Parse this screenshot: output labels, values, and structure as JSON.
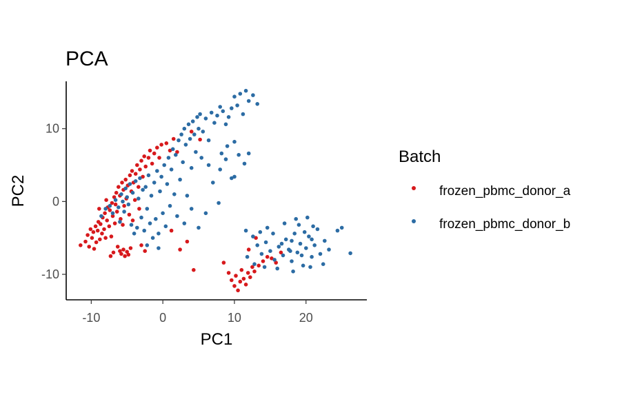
{
  "chart_data": {
    "type": "scatter",
    "title": "PCA",
    "xlabel": "PC1",
    "ylabel": "PC2",
    "xlim": [
      -13.5,
      28.5
    ],
    "ylim": [
      -13.5,
      16.5
    ],
    "xticks": [
      -10,
      0,
      10,
      20
    ],
    "yticks": [
      -10,
      0,
      10
    ],
    "grid": false,
    "legend": {
      "title": "Batch",
      "position": "right"
    },
    "series": [
      {
        "name": "frozen_pbmc_donor_a",
        "color": "#d7191c",
        "points": [
          [
            -11.5,
            -6.0
          ],
          [
            -10.8,
            -5.5
          ],
          [
            -10.5,
            -4.6
          ],
          [
            -10.3,
            -6.2
          ],
          [
            -10.1,
            -3.8
          ],
          [
            -9.9,
            -5.0
          ],
          [
            -9.7,
            -4.2
          ],
          [
            -9.6,
            -6.5
          ],
          [
            -9.4,
            -3.4
          ],
          [
            -9.3,
            -5.6
          ],
          [
            -9.1,
            -4.0
          ],
          [
            -9.0,
            -2.8
          ],
          [
            -8.8,
            -5.2
          ],
          [
            -8.7,
            -3.1
          ],
          [
            -8.5,
            -4.4
          ],
          [
            -8.4,
            -2.2
          ],
          [
            -8.2,
            -3.8
          ],
          [
            -8.1,
            -1.6
          ],
          [
            -8.0,
            -5.0
          ],
          [
            -7.8,
            -2.6
          ],
          [
            -7.7,
            -0.8
          ],
          [
            -7.5,
            -3.4
          ],
          [
            -7.4,
            -1.2
          ],
          [
            -7.2,
            -4.8
          ],
          [
            -7.1,
            -0.2
          ],
          [
            -7.0,
            -2.0
          ],
          [
            -6.8,
            0.6
          ],
          [
            -6.7,
            -3.0
          ],
          [
            -6.5,
            1.2
          ],
          [
            -6.4,
            -1.4
          ],
          [
            -6.3,
            -6.2
          ],
          [
            -6.0,
            -6.8
          ],
          [
            -5.8,
            -7.2
          ],
          [
            -5.5,
            -6.6
          ],
          [
            -5.3,
            -7.5
          ],
          [
            -5.0,
            -6.9
          ],
          [
            -4.8,
            -7.3
          ],
          [
            -6.9,
            -7.0
          ],
          [
            -7.3,
            -7.5
          ],
          [
            -4.5,
            -6.4
          ],
          [
            -6.2,
            2.0
          ],
          [
            -6.0,
            0.8
          ],
          [
            -5.9,
            -2.4
          ],
          [
            -5.7,
            2.6
          ],
          [
            -5.5,
            1.6
          ],
          [
            -5.4,
            -0.6
          ],
          [
            -5.2,
            3.0
          ],
          [
            -5.1,
            0.4
          ],
          [
            -4.9,
            2.2
          ],
          [
            -4.7,
            -1.8
          ],
          [
            -4.6,
            3.6
          ],
          [
            -4.4,
            1.4
          ],
          [
            -4.3,
            4.2
          ],
          [
            -4.1,
            2.6
          ],
          [
            -3.9,
            0.2
          ],
          [
            -3.8,
            3.8
          ],
          [
            -3.6,
            5.0
          ],
          [
            -3.4,
            2.0
          ],
          [
            -3.2,
            4.4
          ],
          [
            -3.0,
            5.6
          ],
          [
            -2.8,
            3.4
          ],
          [
            -2.6,
            6.2
          ],
          [
            -2.4,
            4.8
          ],
          [
            -2.0,
            6.0
          ],
          [
            -1.8,
            7.0
          ],
          [
            -1.5,
            5.2
          ],
          [
            -1.2,
            6.6
          ],
          [
            -0.8,
            7.4
          ],
          [
            -0.5,
            6.0
          ],
          [
            -0.2,
            7.8
          ],
          [
            0.5,
            8.0
          ],
          [
            1.0,
            7.0
          ],
          [
            1.5,
            8.6
          ],
          [
            2.0,
            6.8
          ],
          [
            4.0,
            9.6
          ],
          [
            5.2,
            8.5
          ],
          [
            -3.0,
            -6.0
          ],
          [
            -2.5,
            -6.8
          ],
          [
            1.2,
            -4.0
          ],
          [
            2.4,
            -6.6
          ],
          [
            3.4,
            -5.5
          ],
          [
            4.3,
            -9.4
          ],
          [
            8.5,
            -8.4
          ],
          [
            9.2,
            -9.8
          ],
          [
            9.6,
            -10.8
          ],
          [
            10.0,
            -11.6
          ],
          [
            10.2,
            -10.2
          ],
          [
            10.5,
            -12.2
          ],
          [
            10.8,
            -11.0
          ],
          [
            11.0,
            -9.4
          ],
          [
            11.3,
            -10.6
          ],
          [
            11.6,
            -11.4
          ],
          [
            11.9,
            -9.8
          ],
          [
            12.2,
            -10.4
          ],
          [
            12.5,
            -9.0
          ],
          [
            12.8,
            -9.6
          ],
          [
            13.4,
            -8.8
          ],
          [
            14.0,
            -8.2
          ],
          [
            14.6,
            -7.6
          ],
          [
            15.2,
            -7.8
          ],
          [
            15.8,
            -8.4
          ],
          [
            16.5,
            -7.0
          ],
          [
            13.0,
            -5.0
          ],
          [
            12.0,
            -6.6
          ],
          [
            -8.9,
            -1.0
          ],
          [
            -7.9,
            0.2
          ],
          [
            -6.6,
            -0.4
          ],
          [
            -5.6,
            -3.2
          ],
          [
            -4.2,
            -2.6
          ],
          [
            -3.3,
            -1.0
          ]
        ]
      },
      {
        "name": "frozen_pbmc_donor_b",
        "color": "#2c6ca4",
        "points": [
          [
            -8.6,
            -2.0
          ],
          [
            -8.0,
            -1.0
          ],
          [
            -7.4,
            -0.6
          ],
          [
            -7.0,
            -1.6
          ],
          [
            -6.6,
            0.2
          ],
          [
            -6.2,
            -0.8
          ],
          [
            -6.0,
            -2.8
          ],
          [
            -5.8,
            1.0
          ],
          [
            -5.6,
            0.0
          ],
          [
            -5.4,
            -1.4
          ],
          [
            -5.2,
            1.8
          ],
          [
            -5.0,
            0.6
          ],
          [
            -4.8,
            -0.4
          ],
          [
            -4.6,
            2.4
          ],
          [
            -4.4,
            -3.2
          ],
          [
            -4.2,
            1.2
          ],
          [
            -4.0,
            -4.4
          ],
          [
            -3.8,
            2.8
          ],
          [
            -3.6,
            -3.6
          ],
          [
            -3.4,
            0.4
          ],
          [
            -3.2,
            3.2
          ],
          [
            -3.0,
            -2.2
          ],
          [
            -2.8,
            1.6
          ],
          [
            -2.6,
            -4.0
          ],
          [
            -2.4,
            2.0
          ],
          [
            -2.2,
            -1.0
          ],
          [
            -2.0,
            3.6
          ],
          [
            -1.8,
            -3.0
          ],
          [
            -1.6,
            0.8
          ],
          [
            -1.4,
            -5.0
          ],
          [
            -1.2,
            2.6
          ],
          [
            -1.0,
            -2.4
          ],
          [
            -0.8,
            4.2
          ],
          [
            -0.6,
            -4.4
          ],
          [
            -0.4,
            1.4
          ],
          [
            -0.2,
            3.4
          ],
          [
            0.0,
            -1.6
          ],
          [
            0.2,
            5.0
          ],
          [
            0.4,
            -3.4
          ],
          [
            0.6,
            2.4
          ],
          [
            0.8,
            6.0
          ],
          [
            1.0,
            -0.6
          ],
          [
            1.2,
            4.4
          ],
          [
            1.4,
            7.2
          ],
          [
            1.6,
            1.0
          ],
          [
            1.8,
            6.4
          ],
          [
            2.0,
            -2.0
          ],
          [
            2.2,
            8.4
          ],
          [
            2.4,
            3.0
          ],
          [
            2.6,
            9.2
          ],
          [
            2.8,
            5.4
          ],
          [
            3.0,
            10.0
          ],
          [
            3.2,
            7.8
          ],
          [
            3.4,
            0.8
          ],
          [
            3.6,
            10.6
          ],
          [
            3.8,
            8.6
          ],
          [
            4.0,
            4.6
          ],
          [
            4.2,
            11.0
          ],
          [
            4.4,
            9.2
          ],
          [
            4.6,
            6.8
          ],
          [
            4.8,
            11.6
          ],
          [
            5.0,
            10.0
          ],
          [
            5.2,
            12.0
          ],
          [
            5.6,
            9.6
          ],
          [
            6.0,
            11.4
          ],
          [
            6.4,
            8.4
          ],
          [
            6.8,
            12.2
          ],
          [
            7.2,
            10.8
          ],
          [
            7.6,
            11.8
          ],
          [
            8.0,
            13.0
          ],
          [
            8.4,
            12.4
          ],
          [
            8.8,
            10.6
          ],
          [
            9.2,
            11.6
          ],
          [
            9.6,
            12.8
          ],
          [
            10.0,
            14.4
          ],
          [
            10.4,
            13.2
          ],
          [
            10.8,
            14.8
          ],
          [
            11.2,
            12.0
          ],
          [
            11.6,
            15.2
          ],
          [
            12.0,
            13.8
          ],
          [
            12.6,
            14.6
          ],
          [
            13.2,
            13.4
          ],
          [
            5.4,
            6.0
          ],
          [
            6.4,
            5.0
          ],
          [
            7.0,
            2.6
          ],
          [
            8.0,
            4.4
          ],
          [
            8.8,
            5.8
          ],
          [
            9.6,
            3.2
          ],
          [
            10.6,
            6.4
          ],
          [
            11.4,
            5.2
          ],
          [
            12.0,
            6.6
          ],
          [
            10.0,
            8.2
          ],
          [
            9.0,
            7.6
          ],
          [
            8.2,
            6.6
          ],
          [
            5.0,
            -3.6
          ],
          [
            4.0,
            -1.0
          ],
          [
            3.0,
            -3.0
          ],
          [
            6.0,
            -1.6
          ],
          [
            7.8,
            -0.2
          ],
          [
            10.0,
            3.4
          ],
          [
            11.6,
            -4.0
          ],
          [
            12.6,
            -4.8
          ],
          [
            13.2,
            -6.0
          ],
          [
            13.8,
            -7.2
          ],
          [
            14.4,
            -5.6
          ],
          [
            15.0,
            -6.8
          ],
          [
            15.6,
            -8.0
          ],
          [
            16.2,
            -6.2
          ],
          [
            16.8,
            -7.4
          ],
          [
            17.2,
            -5.2
          ],
          [
            17.6,
            -6.6
          ],
          [
            18.0,
            -8.2
          ],
          [
            18.4,
            -4.4
          ],
          [
            18.8,
            -7.0
          ],
          [
            19.2,
            -5.8
          ],
          [
            19.6,
            -8.8
          ],
          [
            20.0,
            -6.4
          ],
          [
            20.4,
            -4.8
          ],
          [
            20.8,
            -7.6
          ],
          [
            21.2,
            -6.0
          ],
          [
            21.6,
            -3.8
          ],
          [
            22.0,
            -7.2
          ],
          [
            22.6,
            -5.4
          ],
          [
            23.2,
            -6.6
          ],
          [
            24.4,
            -4.0
          ],
          [
            25.0,
            -3.6
          ],
          [
            26.2,
            -7.1
          ],
          [
            17.0,
            -3.0
          ],
          [
            18.6,
            -2.4
          ],
          [
            19.0,
            -3.2
          ],
          [
            20.2,
            -2.2
          ],
          [
            21.0,
            -3.4
          ],
          [
            15.4,
            -4.4
          ],
          [
            14.6,
            -3.6
          ],
          [
            16.0,
            -9.2
          ],
          [
            18.2,
            -9.6
          ],
          [
            20.6,
            -9.0
          ],
          [
            14.2,
            -9.0
          ],
          [
            12.8,
            -8.6
          ],
          [
            11.8,
            -7.6
          ],
          [
            17.8,
            -6.8
          ],
          [
            19.4,
            -7.4
          ],
          [
            16.6,
            -5.8
          ],
          [
            20.8,
            -5.2
          ],
          [
            22.4,
            -8.6
          ],
          [
            13.6,
            -4.2
          ],
          [
            19.8,
            -4.2
          ],
          [
            18.0,
            -5.4
          ],
          [
            -2.2,
            -6.0
          ],
          [
            -0.6,
            -6.4
          ]
        ]
      }
    ]
  }
}
